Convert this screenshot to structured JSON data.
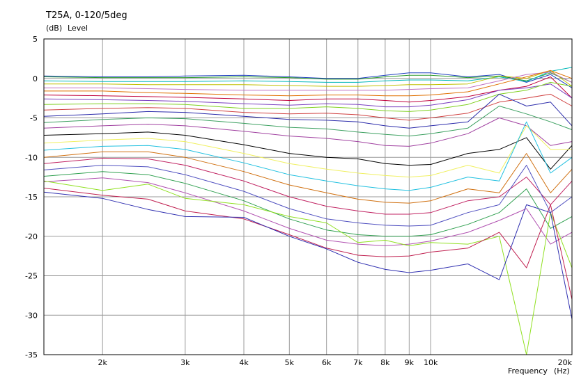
{
  "chart_data": {
    "type": "line",
    "title": "T25A, 0-120/5deg",
    "ylabel": "Level",
    "yunit": "(dB)",
    "xlabel": "Frequency",
    "xunit": "(Hz)",
    "xscale": "log",
    "xlim": [
      1500,
      20000
    ],
    "ylim": [
      -35,
      5
    ],
    "grid": true,
    "x_ticks": [
      {
        "value": 2000,
        "label": "2k"
      },
      {
        "value": 3000,
        "label": "3k"
      },
      {
        "value": 4000,
        "label": "4k"
      },
      {
        "value": 5000,
        "label": "5k"
      },
      {
        "value": 6000,
        "label": "6k"
      },
      {
        "value": 7000,
        "label": "7k"
      },
      {
        "value": 8000,
        "label": "8k"
      },
      {
        "value": 9000,
        "label": "9k"
      },
      {
        "value": 10000,
        "label": "10k"
      },
      {
        "value": 20000,
        "label": "20k"
      }
    ],
    "y_ticks": [
      {
        "value": 5,
        "label": "5"
      },
      {
        "value": 0,
        "label": "0"
      },
      {
        "value": -5,
        "label": "-5"
      },
      {
        "value": -10,
        "label": "-10"
      },
      {
        "value": -15,
        "label": "-15"
      },
      {
        "value": -20,
        "label": "-20"
      },
      {
        "value": -25,
        "label": "-25"
      },
      {
        "value": -30,
        "label": "-30"
      },
      {
        "value": -35,
        "label": "-35"
      }
    ],
    "x": [
      1500,
      2000,
      2500,
      3000,
      4000,
      5000,
      6000,
      7000,
      8000,
      9000,
      10000,
      12000,
      14000,
      16000,
      18000,
      20000
    ],
    "series": [
      {
        "color": "#1f3fbf",
        "values": [
          0.3,
          0.2,
          0.2,
          0.3,
          0.4,
          0.2,
          0.0,
          0.0,
          0.4,
          0.7,
          0.7,
          0.2,
          0.5,
          -0.5,
          0.5,
          -1.2
        ]
      },
      {
        "color": "#2a9a2a",
        "values": [
          0.2,
          0.1,
          0.1,
          0.1,
          0.2,
          0.1,
          -0.1,
          -0.1,
          0.2,
          0.4,
          0.4,
          0.1,
          0.3,
          -0.3,
          0.7,
          -0.5
        ]
      },
      {
        "color": "#00b8b8",
        "values": [
          -0.3,
          -0.4,
          -0.4,
          -0.4,
          -0.3,
          -0.4,
          -0.5,
          -0.5,
          -0.3,
          -0.2,
          -0.2,
          -0.3,
          0.2,
          -0.4,
          0.9,
          1.4
        ]
      },
      {
        "color": "#c0c000",
        "values": [
          -0.7,
          -0.7,
          -0.8,
          -0.8,
          -0.8,
          -0.9,
          -1.0,
          -1.0,
          -0.9,
          -0.8,
          -0.8,
          -0.7,
          0.3,
          0.0,
          1.0,
          -1.0
        ]
      },
      {
        "color": "#c070c0",
        "values": [
          -1.2,
          -1.2,
          -1.3,
          -1.4,
          -1.5,
          -1.5,
          -1.5,
          -1.5,
          -1.5,
          -1.4,
          -1.3,
          -1.2,
          -0.3,
          0.5,
          0.8,
          -0.5
        ]
      },
      {
        "color": "#e07000",
        "values": [
          -1.6,
          -1.6,
          -1.8,
          -1.9,
          -2.1,
          -2.2,
          -2.1,
          -2.1,
          -2.2,
          -2.2,
          -2.1,
          -1.7,
          -0.7,
          0.2,
          1.0,
          0.0
        ]
      },
      {
        "color": "#c0003c",
        "values": [
          -2.1,
          -2.2,
          -2.3,
          -2.4,
          -2.6,
          -2.8,
          -2.6,
          -2.6,
          -2.8,
          -3.0,
          -2.8,
          -2.3,
          -1.5,
          -1.0,
          0.2,
          -2.5
        ]
      },
      {
        "color": "#7a3fbf",
        "values": [
          -2.6,
          -2.7,
          -2.8,
          -2.9,
          -3.2,
          -3.4,
          -3.2,
          -3.3,
          -3.6,
          -3.6,
          -3.4,
          -2.7,
          -1.5,
          -1.2,
          -0.7,
          -2.5
        ]
      },
      {
        "color": "#80d020",
        "values": [
          -3.3,
          -3.2,
          -3.2,
          -3.3,
          -3.8,
          -3.8,
          -3.6,
          -3.8,
          -4.1,
          -4.2,
          -4.0,
          -3.3,
          -2.0,
          -1.5,
          -0.5,
          -1.0
        ]
      },
      {
        "color": "#d04040",
        "values": [
          -4.0,
          -3.8,
          -3.7,
          -3.8,
          -4.3,
          -4.5,
          -4.4,
          -4.6,
          -5.0,
          -5.3,
          -5.0,
          -4.4,
          -3.0,
          -2.5,
          -2.0,
          -3.5
        ]
      },
      {
        "color": "#2a2aaa",
        "values": [
          -4.8,
          -4.5,
          -4.2,
          -4.3,
          -4.8,
          -5.2,
          -5.3,
          -5.5,
          -6.0,
          -6.3,
          -6.0,
          -5.5,
          -2.0,
          -3.5,
          -3.0,
          -6.0
        ]
      },
      {
        "color": "#3ca060",
        "values": [
          -5.6,
          -5.2,
          -5.0,
          -5.1,
          -5.7,
          -6.2,
          -6.4,
          -6.8,
          -7.1,
          -7.3,
          -7.0,
          -6.3,
          -3.5,
          -4.5,
          -5.5,
          -6.5
        ]
      },
      {
        "color": "#a040a0",
        "values": [
          -6.3,
          -6.0,
          -5.8,
          -6.0,
          -6.7,
          -7.3,
          -7.6,
          -8.0,
          -8.5,
          -8.6,
          -8.2,
          -7.0,
          -5.0,
          -6.0,
          -8.5,
          -8.0
        ]
      },
      {
        "color": "#000000",
        "values": [
          -7.2,
          -7.0,
          -6.8,
          -7.2,
          -8.4,
          -9.5,
          -10.0,
          -10.2,
          -10.8,
          -11.0,
          -10.9,
          -9.5,
          -9.0,
          -7.5,
          -11.5,
          -8.5
        ]
      },
      {
        "color": "#f0f060",
        "values": [
          -8.2,
          -7.8,
          -7.6,
          -8.0,
          -9.5,
          -10.8,
          -11.5,
          -12.0,
          -12.3,
          -12.5,
          -12.3,
          -11.0,
          -12.0,
          -6.0,
          -9.0,
          -9.0
        ]
      },
      {
        "color": "#20c0e0",
        "values": [
          -9.1,
          -8.6,
          -8.5,
          -9.0,
          -10.7,
          -12.2,
          -13.0,
          -13.6,
          -14.0,
          -14.2,
          -13.8,
          -12.5,
          -13.0,
          -5.5,
          -12.0,
          -10.0
        ]
      },
      {
        "color": "#d07010",
        "values": [
          -10.0,
          -9.3,
          -9.3,
          -10.0,
          -11.8,
          -13.5,
          -14.5,
          -15.3,
          -15.7,
          -15.8,
          -15.5,
          -14.0,
          -14.5,
          -9.5,
          -14.5,
          -11.5
        ]
      },
      {
        "color": "#c02060",
        "values": [
          -10.8,
          -10.1,
          -10.2,
          -11.0,
          -13.0,
          -15.0,
          -16.2,
          -16.8,
          -17.2,
          -17.2,
          -17.0,
          -15.5,
          -15.0,
          -12.5,
          -16.0,
          -13.0
        ]
      },
      {
        "color": "#5050c0",
        "values": [
          -11.6,
          -11.0,
          -11.2,
          -12.2,
          -14.3,
          -16.5,
          -17.8,
          -18.3,
          -18.6,
          -18.7,
          -18.6,
          -17.0,
          -16.0,
          -11.0,
          -17.0,
          -15.0
        ]
      },
      {
        "color": "#30a050",
        "values": [
          -12.4,
          -11.8,
          -12.2,
          -13.3,
          -15.5,
          -17.8,
          -19.2,
          -19.8,
          -20.0,
          -20.0,
          -19.8,
          -18.5,
          -17.0,
          -14.0,
          -19.0,
          -17.5
        ]
      },
      {
        "color": "#b050b0",
        "values": [
          -13.1,
          -12.6,
          -13.2,
          -14.5,
          -16.8,
          -19.0,
          -20.5,
          -21.0,
          -21.2,
          -21.0,
          -20.6,
          -19.5,
          -18.0,
          -16.5,
          -21.0,
          -19.5
        ]
      },
      {
        "color": "#90e020",
        "values": [
          -13.0,
          -14.2,
          -13.4,
          -15.2,
          -16.0,
          -17.5,
          -18.3,
          -20.8,
          -20.5,
          -21.2,
          -20.8,
          -21.0,
          -20.0,
          -35.0,
          -17.0,
          -24.0
        ]
      },
      {
        "color": "#c02050",
        "values": [
          -13.9,
          -14.8,
          -15.3,
          -16.8,
          -17.8,
          -19.8,
          -21.5,
          -22.4,
          -22.6,
          -22.5,
          -22.0,
          -21.5,
          -19.5,
          -24.0,
          -16.0,
          -28.0
        ]
      },
      {
        "color": "#2f2fb0",
        "values": [
          -14.4,
          -15.2,
          -16.6,
          -17.5,
          -17.6,
          -20.0,
          -21.6,
          -23.3,
          -24.2,
          -24.6,
          -24.3,
          -23.5,
          -25.5,
          -16.0,
          -17.0,
          -30.5
        ]
      }
    ]
  }
}
